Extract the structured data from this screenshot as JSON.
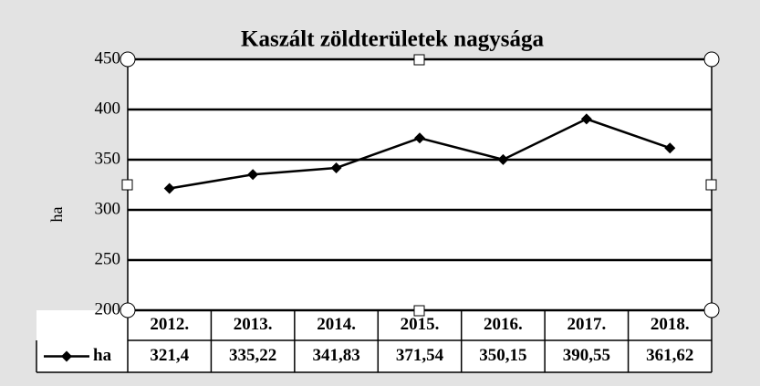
{
  "chart_data": {
    "type": "line",
    "title": "Kaszált zöldterületek nagysága",
    "y_label": "ha",
    "categories": [
      "2012.",
      "2013.",
      "2014.",
      "2015.",
      "2016.",
      "2017.",
      "2018."
    ],
    "series": [
      {
        "name": "ha",
        "color": "#000000",
        "values": [
          321.4,
          335.22,
          341.83,
          371.54,
          350.15,
          390.55,
          361.62
        ],
        "value_labels": [
          "321,4",
          "335,22",
          "341,83",
          "371,54",
          "350,15",
          "390,55",
          "361,62"
        ]
      }
    ],
    "ylim": [
      200,
      450
    ],
    "yticks": [
      200,
      250,
      300,
      350,
      400,
      450
    ],
    "grid": true,
    "legend": "data-table"
  }
}
